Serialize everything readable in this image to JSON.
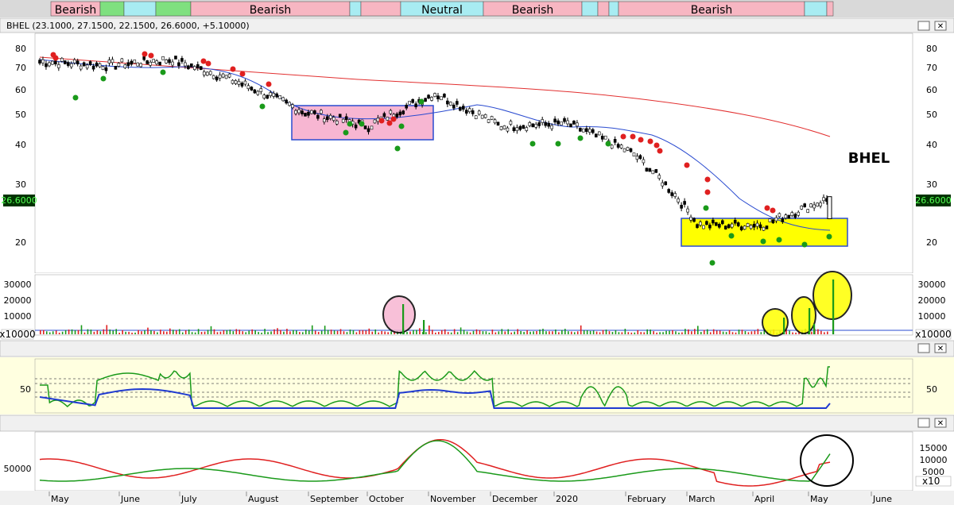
{
  "sentiment_bands": [
    {
      "label": "Bearish",
      "color": "#f7b6c2"
    },
    {
      "label": "Bearish",
      "color": "#f7b6c2"
    },
    {
      "label": "Neutral",
      "color": "#a8ecf2"
    },
    {
      "label": "Bearish",
      "color": "#f7b6c2"
    },
    {
      "label": "Bearish",
      "color": "#f7b6c2"
    }
  ],
  "price_panel": {
    "header": "BHEL (23.1000, 27.1500, 22.1500, 26.6000, +5.10000)",
    "symbol_label": "BHEL",
    "last_value": "26.6000",
    "axis_ticks": [
      "80",
      "70",
      "60",
      "50",
      "40",
      "30",
      "20"
    ]
  },
  "volume_panel": {
    "axis_ticks": [
      "30000",
      "20000",
      "10000"
    ],
    "multiplier": "x10000"
  },
  "oscillator_panel": {
    "axis_ticks": [
      "50"
    ]
  },
  "bottom_panel": {
    "left_ticks": [
      "50000"
    ],
    "right_ticks": [
      "15000",
      "10000",
      "5000"
    ],
    "multiplier": "x10"
  },
  "x_axis": {
    "months": [
      "May",
      "June",
      "July",
      "August",
      "September",
      "October",
      "November",
      "December",
      "2020",
      "February",
      "March",
      "April",
      "May",
      "June"
    ]
  },
  "chart_data": [
    {
      "type": "line",
      "title": "BHEL",
      "x": [
        "May",
        "June",
        "July",
        "August",
        "September",
        "October",
        "November",
        "December",
        "2020",
        "February",
        "March",
        "April",
        "May"
      ],
      "yscale": "log",
      "ylim": [
        18,
        82
      ],
      "series": [
        {
          "name": "BHEL",
          "values": [
            72,
            70,
            73,
            62,
            50,
            45,
            57,
            45,
            46,
            37,
            22,
            22,
            26.6
          ]
        }
      ],
      "annotations": [
        "BHEL"
      ]
    },
    {
      "type": "bar",
      "categories": [
        "May",
        "June",
        "July",
        "August",
        "September",
        "October",
        "November",
        "December",
        "2020",
        "February",
        "March",
        "April",
        "May"
      ],
      "series": [
        {
          "values": [
            2000,
            1500,
            1800,
            2500,
            2200,
            17000,
            2500,
            1500,
            2000,
            2500,
            3000,
            9000,
            30000
          ]
        }
      ],
      "ylim": [
        0,
        35000
      ]
    }
  ]
}
